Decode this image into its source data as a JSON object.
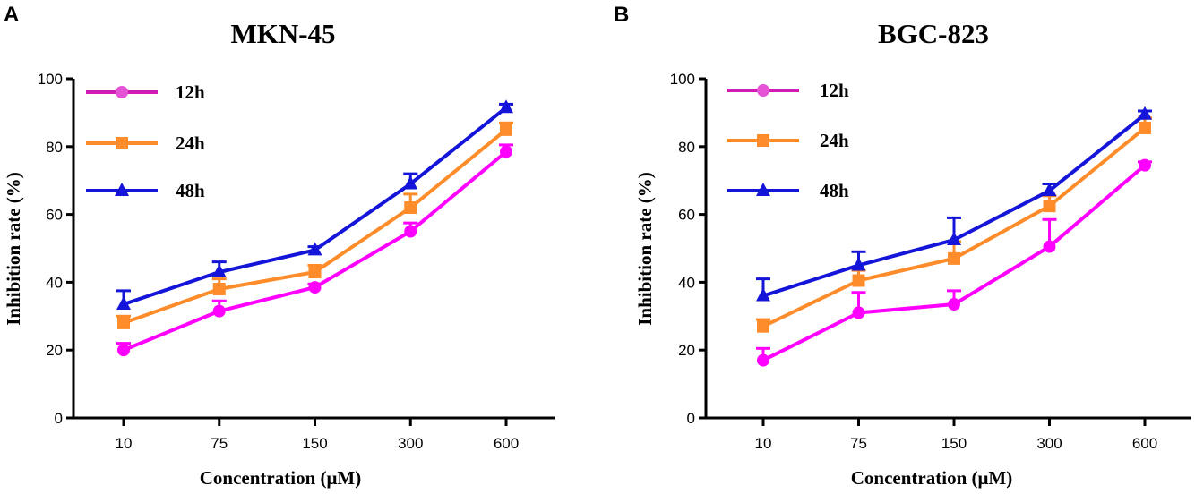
{
  "chart_data": [
    {
      "type": "line",
      "panel_label": "A",
      "title": "MKN-45",
      "xlabel": "Concentration (μM)",
      "ylabel": "Inhibition rate (%)",
      "categories": [
        "10",
        "75",
        "150",
        "300",
        "600"
      ],
      "ylim": [
        0,
        100
      ],
      "yticks": [
        "0",
        "20",
        "40",
        "60",
        "80",
        "100"
      ],
      "legend_position": "top-left",
      "series": [
        {
          "name": "12h",
          "marker": "circle",
          "color": "#ff00ff",
          "legend_color": "#d11bb5",
          "values": [
            20,
            31.5,
            38.5,
            55,
            78.5
          ],
          "errors": [
            2,
            3,
            1,
            2.5,
            2
          ]
        },
        {
          "name": "24h",
          "marker": "square",
          "color": "#ff8c2a",
          "values": [
            28,
            38,
            43,
            62,
            85
          ],
          "errors": [
            2,
            3,
            2,
            4,
            2
          ]
        },
        {
          "name": "48h",
          "marker": "triangle",
          "color": "#1515d9",
          "values": [
            33.5,
            43,
            49.5,
            69,
            91.5
          ],
          "errors": [
            4,
            3,
            1,
            3,
            1
          ]
        }
      ]
    },
    {
      "type": "line",
      "panel_label": "B",
      "title": "BGC-823",
      "xlabel": "Concentration (μM)",
      "ylabel": "Inhibition rate (%)",
      "categories": [
        "10",
        "75",
        "150",
        "300",
        "600"
      ],
      "ylim": [
        0,
        100
      ],
      "yticks": [
        "0",
        "20",
        "40",
        "60",
        "80",
        "100"
      ],
      "legend_position": "top-left",
      "series": [
        {
          "name": "12h",
          "marker": "circle",
          "color": "#ff00ff",
          "legend_color": "#d11bb5",
          "values": [
            17,
            31,
            33.5,
            50.5,
            74.5
          ],
          "errors": [
            3.5,
            6,
            4,
            8,
            1
          ]
        },
        {
          "name": "24h",
          "marker": "square",
          "color": "#ff8c2a",
          "values": [
            27,
            40.5,
            47,
            62.5,
            85.5
          ],
          "errors": [
            2,
            3,
            5,
            3,
            3
          ]
        },
        {
          "name": "48h",
          "marker": "triangle",
          "color": "#1515d9",
          "values": [
            36,
            45,
            52.5,
            67,
            89.5
          ],
          "errors": [
            5,
            4,
            6.5,
            2,
            1
          ]
        }
      ]
    }
  ]
}
